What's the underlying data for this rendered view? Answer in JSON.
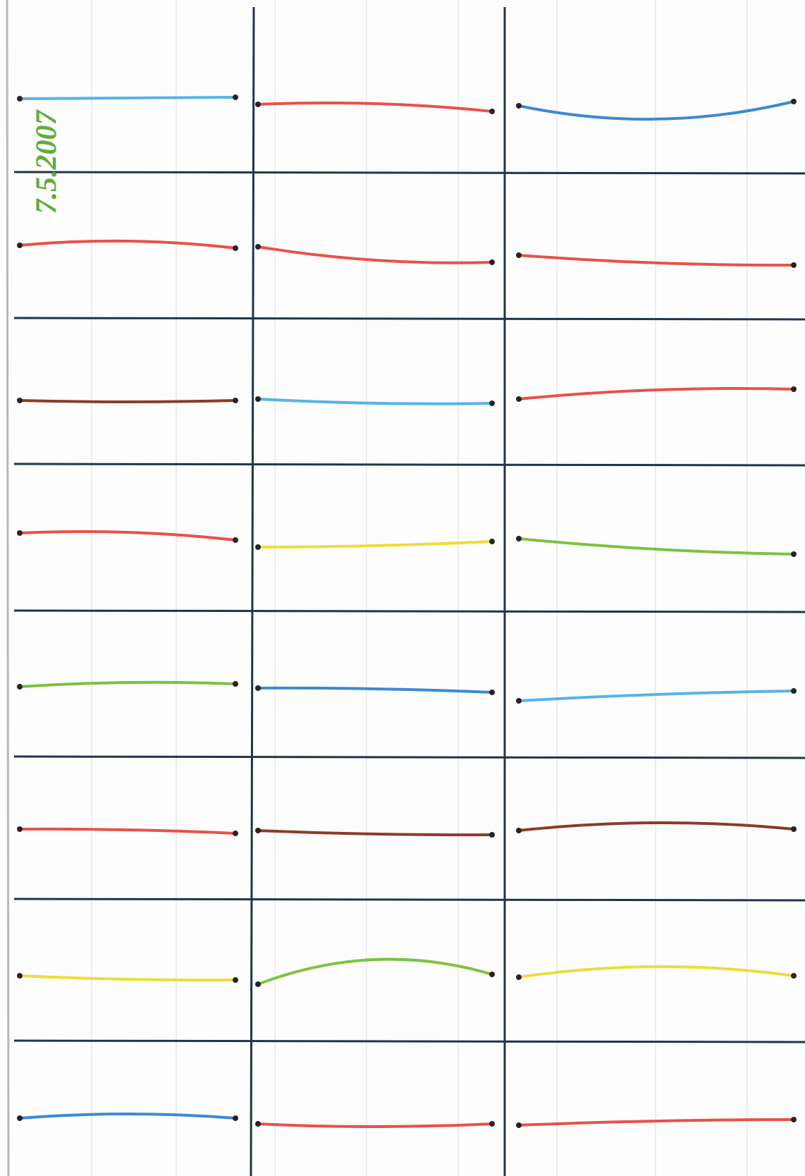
{
  "annotation": "7.5.2007"
}
